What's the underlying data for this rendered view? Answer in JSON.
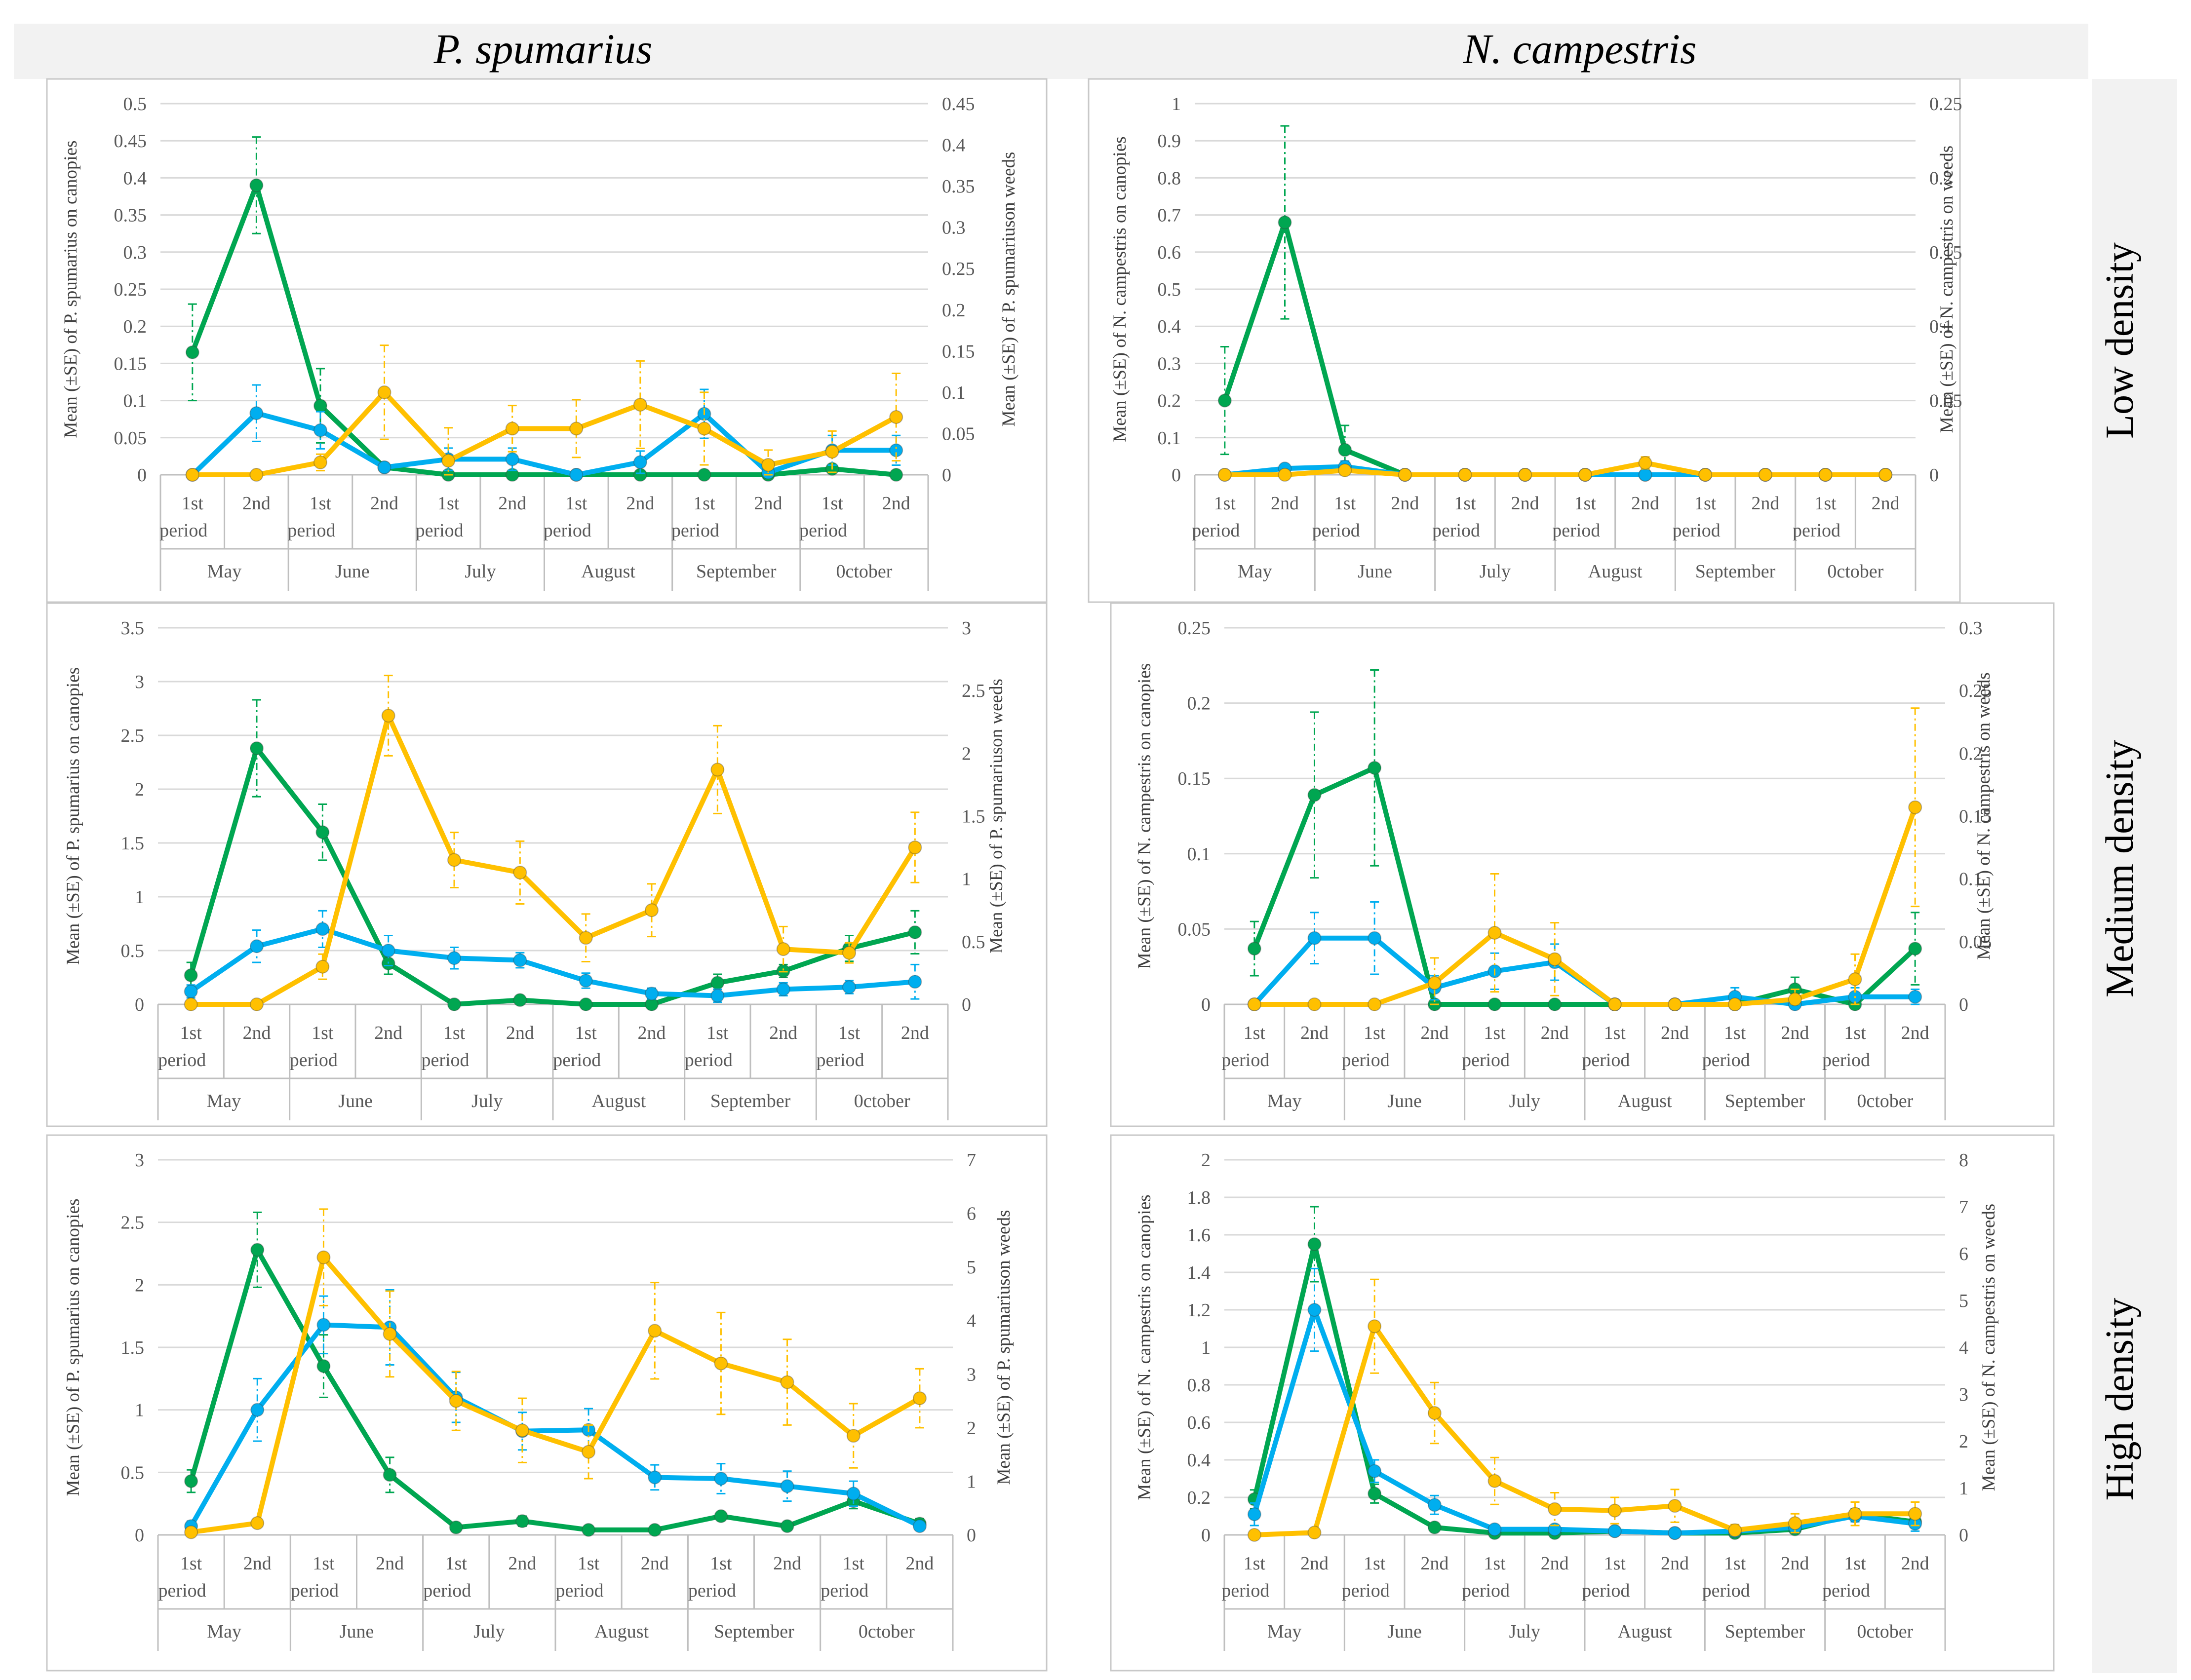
{
  "column_titles": [
    "P. spumarius",
    "N. campestris"
  ],
  "row_titles": [
    "Low density",
    "Medium density",
    "High density"
  ],
  "colors": {
    "green": "#00A651",
    "blue": "#00AEEF",
    "yellow": "#FFC000",
    "grid": "#D9D9D9",
    "axis": "#BFBFBF",
    "header_bg": "#F2F2F2"
  },
  "x_axis": {
    "periods": [
      "1st",
      "2nd",
      "1st",
      "2nd",
      "1st",
      "2nd",
      "1st",
      "2nd",
      "1st",
      "2nd",
      "1st",
      "2nd"
    ],
    "period_suffix": "period",
    "months": [
      "May",
      "June",
      "July",
      "August",
      "September",
      "0ctober"
    ]
  },
  "chart_data": [
    {
      "type": "line",
      "panel": "P. spumarius – Low density",
      "ylabel_left": "Mean (±SE) of P. spumarius on canopies",
      "ylabel_right": "Mean  (±SE) of P. spumariuson weeds",
      "ylim_left": [
        0,
        0.5
      ],
      "yticks_left": [
        "0",
        "0.05",
        "0.1",
        "0.15",
        "0.2",
        "0.25",
        "0.3",
        "0.35",
        "0.4",
        "0.45",
        "0.5"
      ],
      "ylim_right": [
        0,
        0.45
      ],
      "yticks_right": [
        "0",
        "0.05",
        "0.1",
        "0.15",
        "0.2",
        "0.25",
        "0.3",
        "0.35",
        "0.4",
        "0.45"
      ],
      "series": [
        {
          "color": "green",
          "axis": "left",
          "values": [
            0.165,
            0.39,
            0.093,
            0.01,
            0,
            0,
            0,
            0,
            0,
            0,
            0.008,
            0
          ],
          "se": [
            0.065,
            0.065,
            0.05,
            0.005,
            0,
            0,
            0,
            0,
            0,
            0,
            0.005,
            0
          ]
        },
        {
          "color": "blue",
          "axis": "left",
          "values": [
            0,
            0.083,
            0.06,
            0.01,
            0.021,
            0.021,
            0,
            0.017,
            0.082,
            0.003,
            0.033,
            0.033
          ],
          "se": [
            0,
            0.038,
            0.025,
            0.005,
            0.015,
            0.015,
            0,
            0.015,
            0.033,
            0.003,
            0.02,
            0.02
          ]
        },
        {
          "color": "yellow",
          "axis": "right",
          "values": [
            0,
            0,
            0.015,
            0.1,
            0.017,
            0.056,
            0.056,
            0.085,
            0.056,
            0.012,
            0.028,
            0.07
          ],
          "se": [
            0,
            0,
            0.01,
            0.057,
            0.04,
            0.028,
            0.035,
            0.053,
            0.044,
            0.018,
            0.025,
            0.053
          ]
        }
      ]
    },
    {
      "type": "line",
      "panel": "N. campestris – Low density",
      "ylabel_left": "Mean (±SE) of N. campestris on canopies",
      "ylabel_right": "Mean  (±SE) of N. campestris on weeds",
      "ylim_left": [
        0,
        1
      ],
      "yticks_left": [
        "0",
        "0.1",
        "0.2",
        "0.3",
        "0.4",
        "0.5",
        "0.6",
        "0.7",
        "0.8",
        "0.9",
        "1"
      ],
      "ylim_right": [
        0,
        0.25
      ],
      "yticks_right": [
        "0",
        "0.05",
        "0.1",
        "0.15",
        "0.2",
        "0.25"
      ],
      "series": [
        {
          "color": "green",
          "axis": "left",
          "values": [
            0.2,
            0.68,
            0.067,
            0,
            0,
            0,
            0,
            0,
            0,
            0,
            0,
            0
          ],
          "se": [
            0.145,
            0.26,
            0.066,
            0,
            0,
            0,
            0,
            0,
            0,
            0,
            0,
            0
          ]
        },
        {
          "color": "blue",
          "axis": "left",
          "values": [
            0,
            0.017,
            0.022,
            0,
            0,
            0,
            0,
            0,
            0,
            0,
            0,
            0
          ],
          "se": [
            0,
            0.01,
            0.015,
            0,
            0,
            0,
            0,
            0,
            0,
            0,
            0,
            0
          ]
        },
        {
          "color": "yellow",
          "axis": "right",
          "values": [
            0,
            0,
            0.003,
            0,
            0,
            0,
            0,
            0.008,
            0,
            0,
            0,
            0
          ],
          "se": [
            0,
            0,
            0.003,
            0,
            0,
            0,
            0,
            0.004,
            0,
            0,
            0,
            0
          ]
        }
      ]
    },
    {
      "type": "line",
      "panel": "P. spumarius – Medium density",
      "ylabel_left": "Mean (±SE) of P. spumarius on canopies",
      "ylabel_right": "Mean  (±SE) of P. spumariuson weeds",
      "ylim_left": [
        0,
        3.5
      ],
      "yticks_left": [
        "0",
        "0.5",
        "1",
        "1.5",
        "2",
        "2.5",
        "3",
        "3.5"
      ],
      "ylim_right": [
        0,
        3
      ],
      "yticks_right": [
        "0",
        "0.5",
        "1",
        "1.5",
        "2",
        "2.5",
        "3"
      ],
      "series": [
        {
          "color": "green",
          "axis": "left",
          "values": [
            0.27,
            2.38,
            1.6,
            0.38,
            0,
            0.04,
            0,
            0,
            0.2,
            0.31,
            0.52,
            0.67
          ],
          "se": [
            0.12,
            0.45,
            0.26,
            0.1,
            0,
            0.02,
            0,
            0,
            0.08,
            0.06,
            0.12,
            0.2
          ]
        },
        {
          "color": "blue",
          "axis": "left",
          "values": [
            0.12,
            0.54,
            0.7,
            0.5,
            0.43,
            0.41,
            0.22,
            0.1,
            0.08,
            0.14,
            0.16,
            0.21
          ],
          "se": [
            0.06,
            0.15,
            0.17,
            0.14,
            0.1,
            0.07,
            0.07,
            0.05,
            0.06,
            0.06,
            0.06,
            0.16
          ]
        },
        {
          "color": "yellow",
          "axis": "right",
          "values": [
            0,
            0,
            0.3,
            2.3,
            1.15,
            1.05,
            0.53,
            0.75,
            1.87,
            0.44,
            0.41,
            1.25
          ],
          "se": [
            0,
            0,
            0.1,
            0.32,
            0.22,
            0.25,
            0.19,
            0.21,
            0.35,
            0.18,
            0.08,
            0.28
          ]
        }
      ]
    },
    {
      "type": "line",
      "panel": "N. campestris – Medium density",
      "ylabel_left": "Mean (±SE) of N. campestris on canopies",
      "ylabel_right": "Mean  (±SE) of N. campestris on weeds",
      "ylim_left": [
        0,
        0.25
      ],
      "yticks_left": [
        "0",
        "0.05",
        "0.1",
        "0.15",
        "0.2",
        "0.25"
      ],
      "ylim_right": [
        0,
        0.3
      ],
      "yticks_right": [
        "0",
        "0.05",
        "0.1",
        "0.15",
        "0.2",
        "0.25",
        "0.3"
      ],
      "series": [
        {
          "color": "green",
          "axis": "left",
          "values": [
            0.037,
            0.139,
            0.157,
            0,
            0,
            0,
            0,
            0,
            0,
            0.01,
            0,
            0.037
          ],
          "se": [
            0.018,
            0.055,
            0.065,
            0,
            0,
            0,
            0,
            0,
            0,
            0.008,
            0,
            0.024
          ]
        },
        {
          "color": "blue",
          "axis": "left",
          "values": [
            0,
            0.044,
            0.044,
            0.011,
            0.022,
            0.028,
            0,
            0,
            0.005,
            0,
            0.005,
            0.005
          ],
          "se": [
            0,
            0.017,
            0.024,
            0.008,
            0.012,
            0.012,
            0,
            0,
            0.006,
            0.003,
            0.006,
            0.005
          ]
        },
        {
          "color": "yellow",
          "axis": "right",
          "values": [
            0,
            0,
            0,
            0.017,
            0.057,
            0.036,
            0,
            0,
            0,
            0.004,
            0.02,
            0.157
          ],
          "se": [
            0,
            0,
            0,
            0.02,
            0.047,
            0.029,
            0,
            0,
            0,
            0.008,
            0.02,
            0.079
          ]
        }
      ]
    },
    {
      "type": "line",
      "panel": "P. spumarius – High density",
      "ylabel_left": "Mean (±SE) of P. spumarius on canopies",
      "ylabel_right": "Mean  (±SE) of P. spumariuson weeds",
      "ylim_left": [
        0,
        3
      ],
      "yticks_left": [
        "0",
        "0.5",
        "1",
        "1.5",
        "2",
        "2.5",
        "3"
      ],
      "ylim_right": [
        0,
        7
      ],
      "yticks_right": [
        "0",
        "1",
        "2",
        "3",
        "4",
        "5",
        "6",
        "7"
      ],
      "series": [
        {
          "color": "green",
          "axis": "left",
          "values": [
            0.43,
            2.28,
            1.35,
            0.48,
            0.06,
            0.11,
            0.04,
            0.04,
            0.15,
            0.07,
            0.27,
            0.09
          ],
          "se": [
            0.09,
            0.3,
            0.25,
            0.14,
            0.02,
            0.04,
            0.01,
            0.01,
            0.03,
            0.03,
            0.06,
            0.04
          ]
        },
        {
          "color": "blue",
          "axis": "left",
          "values": [
            0.07,
            1.0,
            1.68,
            1.66,
            1.1,
            0.83,
            0.84,
            0.46,
            0.45,
            0.39,
            0.33,
            0.07
          ],
          "se": [
            0.04,
            0.25,
            0.23,
            0.3,
            0.2,
            0.15,
            0.17,
            0.1,
            0.12,
            0.12,
            0.1,
            0.03
          ]
        },
        {
          "color": "yellow",
          "axis": "right",
          "values": [
            0.05,
            0.22,
            5.18,
            3.75,
            2.5,
            1.95,
            1.55,
            3.81,
            3.2,
            2.85,
            1.85,
            2.55
          ],
          "se": [
            0.05,
            0.07,
            0.9,
            0.8,
            0.55,
            0.6,
            0.5,
            0.9,
            0.95,
            0.8,
            0.6,
            0.55
          ]
        }
      ]
    },
    {
      "type": "line",
      "panel": "N. campestris – High density",
      "ylabel_left": "Mean (±SE) of N. campestris on canopies",
      "ylabel_right": "Mean  (±SE) of N. campestris on weeds",
      "ylim_left": [
        0,
        2
      ],
      "yticks_left": [
        "0",
        "0.2",
        "0.4",
        "0.6",
        "0.8",
        "1",
        "1.2",
        "1.4",
        "1.6",
        "1.8",
        "2"
      ],
      "ylim_right": [
        0,
        8
      ],
      "yticks_right": [
        "0",
        "1",
        "2",
        "3",
        "4",
        "5",
        "6",
        "7",
        "8"
      ],
      "series": [
        {
          "color": "green",
          "axis": "left",
          "values": [
            0.19,
            1.55,
            0.22,
            0.04,
            0.01,
            0.01,
            0.02,
            0.01,
            0.01,
            0.03,
            0.11,
            0.07
          ],
          "se": [
            0.05,
            0.2,
            0.05,
            0.02,
            0.01,
            0.01,
            0.01,
            0.01,
            0.01,
            0.01,
            0.03,
            0.03
          ]
        },
        {
          "color": "blue",
          "axis": "left",
          "values": [
            0.11,
            1.2,
            0.34,
            0.16,
            0.03,
            0.03,
            0.02,
            0.01,
            0.02,
            0.04,
            0.1,
            0.06
          ],
          "se": [
            0.06,
            0.22,
            0.06,
            0.05,
            0.02,
            0.02,
            0.01,
            0.01,
            0.01,
            0.02,
            0.03,
            0.04
          ]
        },
        {
          "color": "yellow",
          "axis": "right",
          "values": [
            0,
            0.05,
            4.45,
            2.6,
            1.15,
            0.55,
            0.52,
            0.62,
            0.1,
            0.25,
            0.45,
            0.45
          ],
          "se": [
            0,
            0.03,
            1.0,
            0.65,
            0.5,
            0.35,
            0.28,
            0.35,
            0.12,
            0.2,
            0.25,
            0.25
          ]
        }
      ]
    }
  ]
}
